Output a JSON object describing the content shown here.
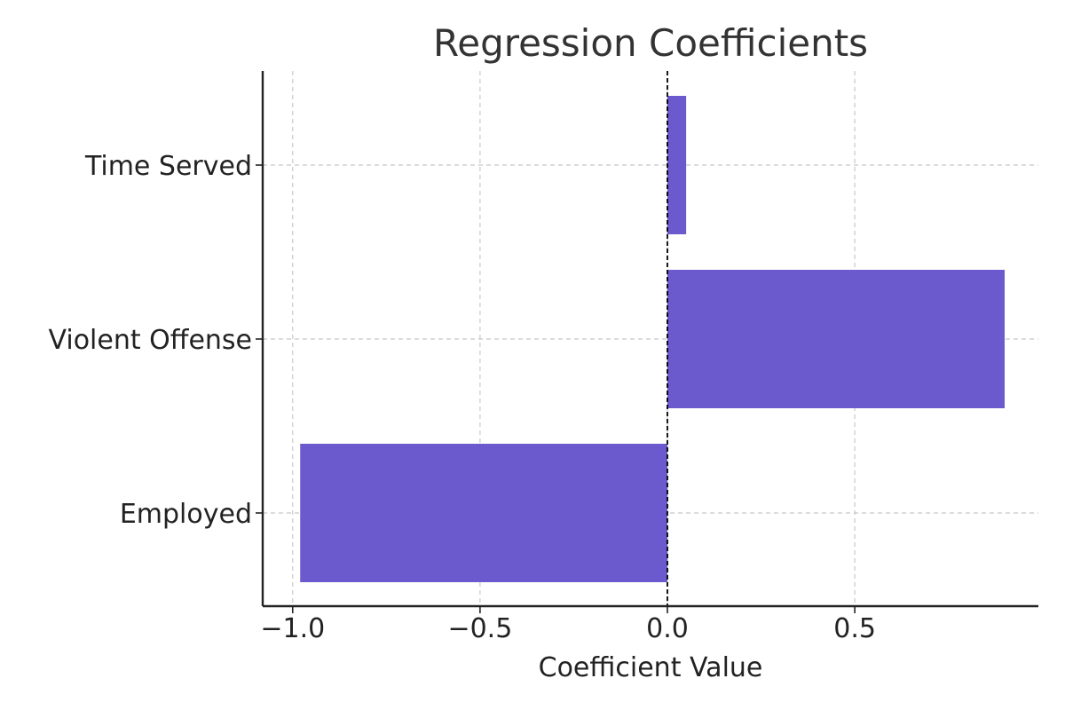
{
  "chart_data": {
    "type": "bar",
    "orientation": "horizontal",
    "title": "Regression Coefficients",
    "xlabel": "Coefficient Value",
    "ylabel": "",
    "categories": [
      "Employed",
      "Violent Offense",
      "Time Served"
    ],
    "values": [
      -0.98,
      0.9,
      0.05
    ],
    "xlim": [
      -1.08,
      0.99
    ],
    "xticks": [
      -1.0,
      -0.5,
      0.0,
      0.5
    ],
    "xtick_labels": [
      "−1.0",
      "−0.5",
      "0.0",
      "0.5"
    ],
    "bar_color": "#6a5acd",
    "reference_line": {
      "x": 0,
      "style": "dashed",
      "color": "#000000"
    },
    "grid": true,
    "legend": "none"
  }
}
